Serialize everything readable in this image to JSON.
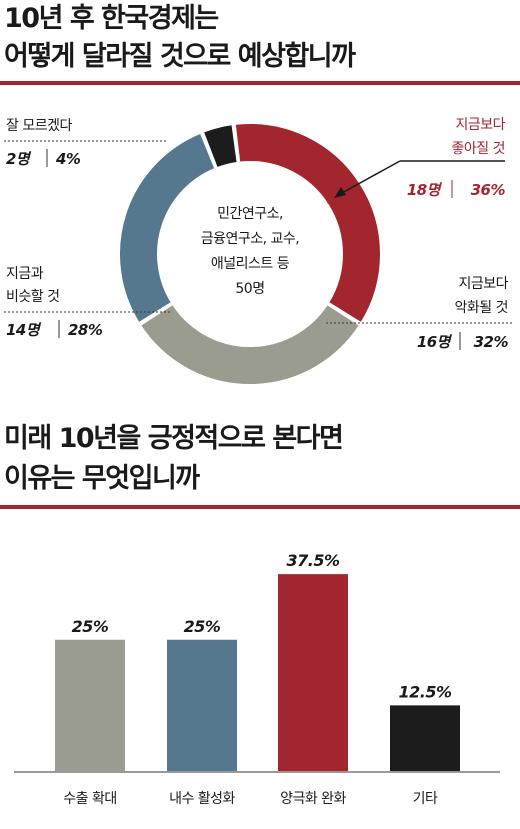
{
  "header1": {
    "line1": "10년 후 한국경제는",
    "line2": "어떻게 달라질 것으로 예상합니까"
  },
  "header2": {
    "line1": "미래 10년을 긍정적으로 본다면",
    "line2": "이유는 무엇입니까"
  },
  "colors": {
    "accent_red": "#a3262f",
    "gray": "#999c8f",
    "blue": "#55788f",
    "black": "#1c1c1c"
  },
  "chart_data": [
    {
      "type": "pie",
      "donut": true,
      "center_text": [
        "민간연구소,",
        "금융연구소, 교수,",
        "애널리스트 등",
        "50명"
      ],
      "slices": [
        {
          "label_lines": [
            "지금보다",
            "좋아질 것"
          ],
          "count_text": "18명",
          "pct_text": "36%",
          "count": 18,
          "percent": 36,
          "color": "#a3262f",
          "highlight": true
        },
        {
          "label_lines": [
            "지금보다",
            "악화될 것"
          ],
          "count_text": "16명",
          "pct_text": "32%",
          "count": 16,
          "percent": 32,
          "color": "#999c8f",
          "highlight": false
        },
        {
          "label_lines": [
            "지금과",
            "비슷할 것"
          ],
          "count_text": "14명",
          "pct_text": "28%",
          "count": 14,
          "percent": 28,
          "color": "#55788f",
          "highlight": false
        },
        {
          "label_lines": [
            "잘 모르겠다"
          ],
          "count_text": "2명",
          "pct_text": "4%",
          "count": 2,
          "percent": 4,
          "color": "#1c1c1c",
          "highlight": false
        }
      ]
    },
    {
      "type": "bar",
      "categories": [
        "수출 확대",
        "내수 활성화",
        "양극화 완화",
        "기타"
      ],
      "values": [
        25,
        25,
        37.5,
        12.5
      ],
      "value_labels": [
        "25%",
        "25%",
        "37.5%",
        "12.5%"
      ],
      "colors": [
        "#999c8f",
        "#55788f",
        "#a3262f",
        "#1c1c1c"
      ],
      "ylim": [
        0,
        40
      ]
    }
  ]
}
